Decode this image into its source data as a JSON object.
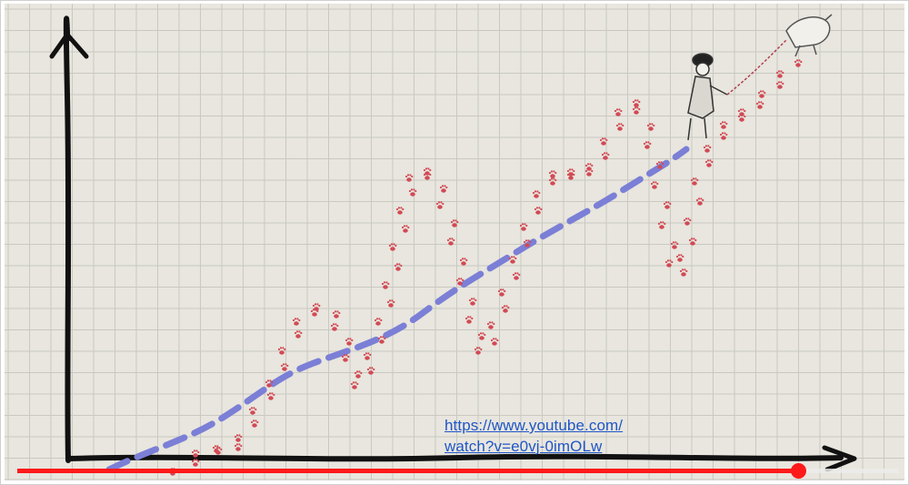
{
  "link": {
    "line1": "https://www.youtube.com/",
    "line2": "watch?v=e0vj-0imOLw"
  },
  "player": {
    "progress_fraction": 0.886,
    "played_color": "#ff1a1a",
    "track_color": "#ebebeb"
  },
  "drawing": {
    "paper_color": "#e8e6de",
    "grid_color": "#c9c8c1",
    "axis_color": "#111111",
    "dog_path_color": "#d24a55",
    "owner_path_color": "#7b7fd6",
    "icons": [
      "y-axis-arrow-icon",
      "x-axis-arrow-icon",
      "man-walking-icon",
      "dog-icon",
      "leash-icon"
    ]
  }
}
